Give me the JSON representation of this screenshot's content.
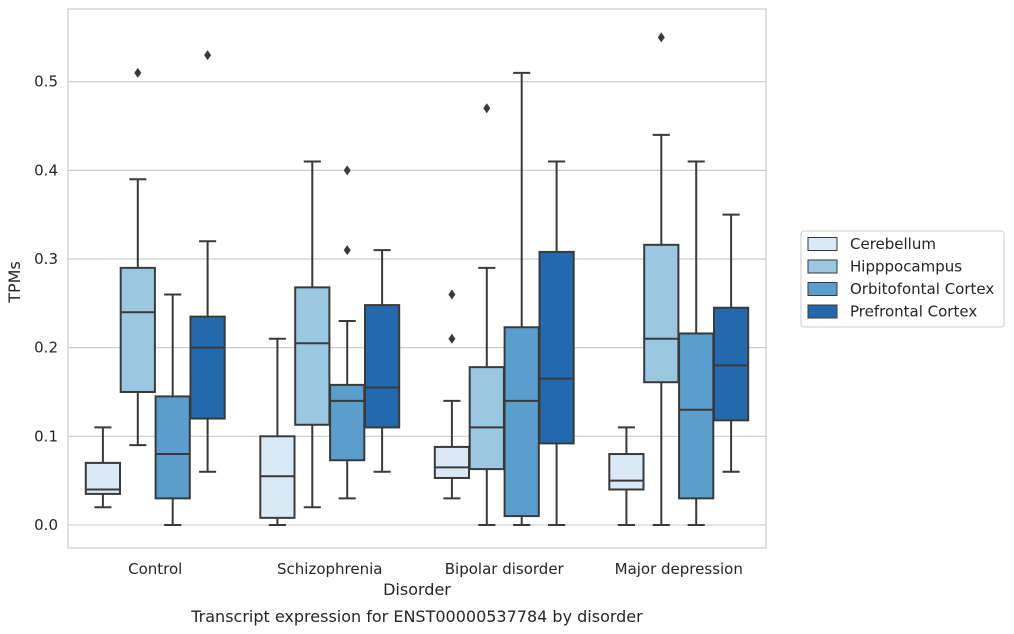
{
  "chart_data": {
    "type": "box",
    "caption": "Transcript expression for ENST00000537784 by disorder",
    "xlabel": "Disorder",
    "ylabel": "TPMs",
    "ylim": [
      -0.026,
      0.582
    ],
    "yticks": [
      0.0,
      0.1,
      0.2,
      0.3,
      0.4,
      0.5
    ],
    "ytick_labels": [
      "0.0",
      "0.1",
      "0.2",
      "0.3",
      "0.4",
      "0.5"
    ],
    "categories": [
      "Control",
      "Schizophrenia",
      "Bipolar disorder",
      "Major depression"
    ],
    "grid": "horizontal",
    "legend_position": "right",
    "series": [
      {
        "name": "Cerebellum",
        "color": "#dbe9f6",
        "boxes": [
          {
            "whislo": 0.02,
            "q1": 0.035,
            "med": 0.04,
            "q3": 0.07,
            "whishi": 0.11,
            "fliers": []
          },
          {
            "whislo": 0.0,
            "q1": 0.008,
            "med": 0.055,
            "q3": 0.1,
            "whishi": 0.21,
            "fliers": []
          },
          {
            "whislo": 0.03,
            "q1": 0.053,
            "med": 0.065,
            "q3": 0.088,
            "whishi": 0.14,
            "fliers": [
              0.21,
              0.26
            ]
          },
          {
            "whislo": 0.0,
            "q1": 0.04,
            "med": 0.05,
            "q3": 0.08,
            "whishi": 0.11,
            "fliers": []
          }
        ]
      },
      {
        "name": "Hipppocampus",
        "color": "#9ac8e0",
        "boxes": [
          {
            "whislo": 0.09,
            "q1": 0.15,
            "med": 0.24,
            "q3": 0.29,
            "whishi": 0.39,
            "fliers": [
              0.51
            ]
          },
          {
            "whislo": 0.02,
            "q1": 0.113,
            "med": 0.205,
            "q3": 0.268,
            "whishi": 0.41,
            "fliers": []
          },
          {
            "whislo": 0.0,
            "q1": 0.063,
            "med": 0.11,
            "q3": 0.178,
            "whishi": 0.29,
            "fliers": [
              0.47
            ]
          },
          {
            "whislo": 0.0,
            "q1": 0.161,
            "med": 0.21,
            "q3": 0.316,
            "whishi": 0.44,
            "fliers": [
              0.55
            ]
          }
        ]
      },
      {
        "name": "Orbitofontal Cortex",
        "color": "#5a9ecd",
        "boxes": [
          {
            "whislo": 0.0,
            "q1": 0.03,
            "med": 0.08,
            "q3": 0.145,
            "whishi": 0.26,
            "fliers": []
          },
          {
            "whislo": 0.03,
            "q1": 0.073,
            "med": 0.14,
            "q3": 0.158,
            "whishi": 0.23,
            "fliers": [
              0.31,
              0.4
            ]
          },
          {
            "whislo": 0.0,
            "q1": 0.01,
            "med": 0.14,
            "q3": 0.223,
            "whishi": 0.51,
            "fliers": []
          },
          {
            "whislo": 0.0,
            "q1": 0.03,
            "med": 0.13,
            "q3": 0.216,
            "whishi": 0.41,
            "fliers": []
          }
        ]
      },
      {
        "name": "Prefrontal Cortex",
        "color": "#2269ad",
        "boxes": [
          {
            "whislo": 0.06,
            "q1": 0.12,
            "med": 0.2,
            "q3": 0.235,
            "whishi": 0.32,
            "fliers": [
              0.53
            ]
          },
          {
            "whislo": 0.06,
            "q1": 0.11,
            "med": 0.155,
            "q3": 0.248,
            "whishi": 0.31,
            "fliers": []
          },
          {
            "whislo": 0.0,
            "q1": 0.092,
            "med": 0.165,
            "q3": 0.308,
            "whishi": 0.41,
            "fliers": []
          },
          {
            "whislo": 0.06,
            "q1": 0.118,
            "med": 0.18,
            "q3": 0.245,
            "whishi": 0.35,
            "fliers": []
          }
        ]
      }
    ]
  }
}
